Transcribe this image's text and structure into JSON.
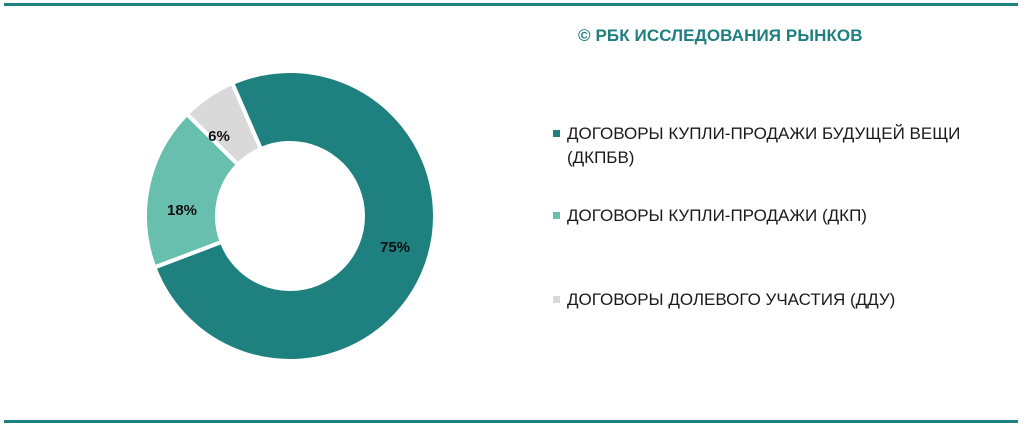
{
  "header": {
    "source": "© РБК ИССЛЕДОВАНИЯ РЫНКОВ"
  },
  "colors": {
    "accent": "#1f8080",
    "dkpbv": "#1f8080",
    "dkp": "#68bfae",
    "ddu": "#d9d9d9"
  },
  "legend": {
    "items": [
      {
        "label": "ДОГОВОРЫ КУПЛИ-ПРОДАЖИ БУДУЩЕЙ ВЕЩИ (ДКПБВ)",
        "color": "#1f8080"
      },
      {
        "label": "ДОГОВОРЫ КУПЛИ-ПРОДАЖИ (ДКП)",
        "color": "#68bfae"
      },
      {
        "label": "ДОГОВОРЫ ДОЛЕВОГО УЧАСТИЯ (ДДУ)",
        "color": "#d9d9d9"
      }
    ]
  },
  "slices": {
    "dkpbv": "75%",
    "dkp": "18%",
    "ddu": "6%"
  },
  "chart_data": {
    "type": "pie",
    "subtype": "donut",
    "title": "",
    "source": "© РБК ИССЛЕДОВАНИЯ РЫНКОВ",
    "categories": [
      "ДОГОВОРЫ КУПЛИ-ПРОДАЖИ БУДУЩЕЙ ВЕЩИ (ДКПБВ)",
      "ДОГОВОРЫ КУПЛИ-ПРОДАЖИ (ДКП)",
      "ДОГОВОРЫ ДОЛЕВОГО УЧАСТИЯ (ДДУ)"
    ],
    "values": [
      75,
      18,
      6
    ],
    "unit": "%",
    "data_labels": [
      "75%",
      "18%",
      "6%"
    ],
    "colors": [
      "#1f8080",
      "#68bfae",
      "#d9d9d9"
    ],
    "legend_position": "right"
  }
}
